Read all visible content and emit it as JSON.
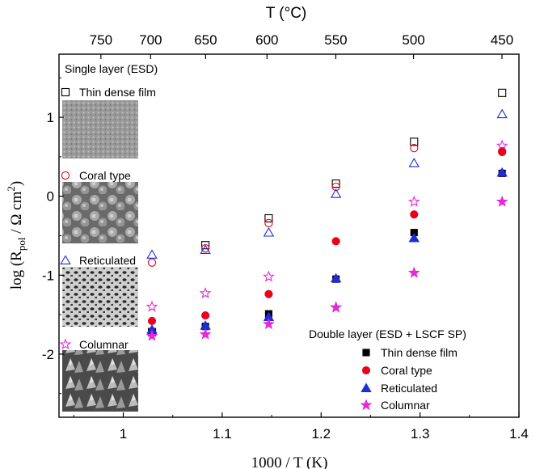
{
  "chart_data": {
    "type": "scatter",
    "xlabel": "1000 / T (K)",
    "ylabel_prefix": "log (R",
    "ylabel_sub": "pol",
    "ylabel_mid": " / Ω cm",
    "ylabel_sup": "2",
    "ylabel_suffix": ")",
    "top_axis_label": "T (°C)",
    "xlim": [
      0.935,
      1.4
    ],
    "ylim": [
      -2.8,
      1.8
    ],
    "x_ticks": [
      1,
      1.1,
      1.2,
      1.3,
      1.4
    ],
    "x_tick_labels": [
      "1",
      "1.1",
      "1.2",
      "1.3",
      "1.4"
    ],
    "y_ticks": [
      -2,
      -1,
      0,
      1
    ],
    "y_tick_labels": [
      "-2",
      "-1",
      "0",
      "1"
    ],
    "top_ticks": [
      750,
      700,
      650,
      600,
      550,
      500,
      450
    ],
    "top_tick_labels": [
      "750",
      "700",
      "650",
      "600",
      "550",
      "500",
      "450"
    ],
    "grid": false,
    "single_layer_title": "Single layer (ESD)",
    "double_layer_title": "Double layer (ESD + LSCF SP)",
    "x": [
      1.029,
      1.083,
      1.147,
      1.215,
      1.294,
      1.383
    ],
    "series": [
      {
        "name": "Thin dense film",
        "group": "single",
        "marker": "square",
        "filled": false,
        "color": "#000000",
        "values": [
          -1.72,
          -0.62,
          -0.28,
          0.16,
          0.69,
          1.31
        ]
      },
      {
        "name": "Coral type",
        "group": "single",
        "marker": "circle",
        "filled": false,
        "color": "#e8001c",
        "values": [
          -0.84,
          -0.66,
          -0.34,
          0.12,
          0.61,
          0.57
        ]
      },
      {
        "name": "Reticulated",
        "group": "single",
        "marker": "triangle",
        "filled": false,
        "color": "#1f2dd8",
        "values": [
          -0.74,
          -0.68,
          -0.46,
          0.03,
          0.42,
          1.04
        ]
      },
      {
        "name": "Columnar",
        "group": "single",
        "marker": "star",
        "filled": false,
        "color": "#e22ad7",
        "values": [
          -1.4,
          -1.23,
          -1.02,
          -1.41,
          -0.07,
          0.64
        ]
      },
      {
        "name": "Thin dense film",
        "group": "double",
        "marker": "square",
        "filled": true,
        "color": "#000000",
        "values": [
          -1.73,
          -1.65,
          -1.49,
          -1.05,
          -0.46,
          0.29
        ]
      },
      {
        "name": "Coral type",
        "group": "double",
        "marker": "circle",
        "filled": true,
        "color": "#e8001c",
        "values": [
          -1.58,
          -1.51,
          -1.24,
          -0.57,
          -0.23,
          0.56
        ]
      },
      {
        "name": "Reticulated",
        "group": "double",
        "marker": "triangle",
        "filled": true,
        "color": "#1f2dd8",
        "values": [
          -1.69,
          -1.64,
          -1.53,
          -1.04,
          -0.53,
          0.3
        ]
      },
      {
        "name": "Columnar",
        "group": "double",
        "marker": "star",
        "filled": true,
        "color": "#e22ad7",
        "values": [
          -1.77,
          -1.75,
          -1.62,
          -1.41,
          -0.97,
          -0.07
        ]
      }
    ]
  }
}
